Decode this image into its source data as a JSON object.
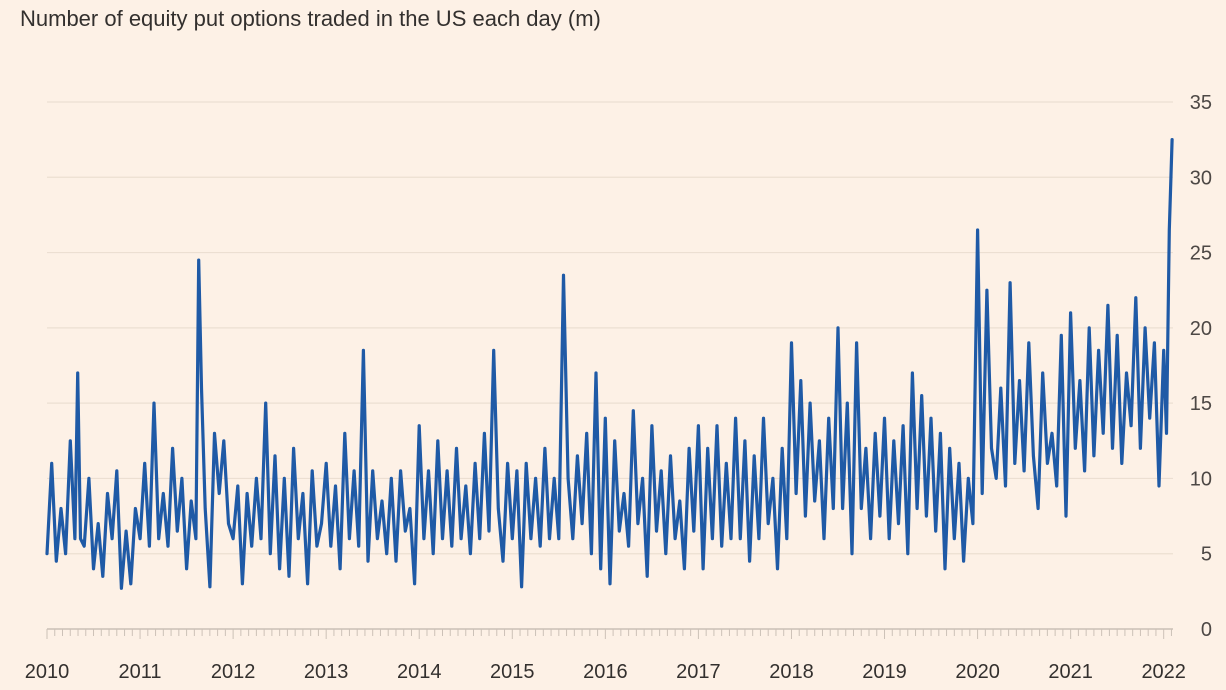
{
  "chart_data": {
    "type": "line",
    "title": "Number of equity put options traded in the US each day (m)",
    "xlabel": "",
    "ylabel": "",
    "xlim": [
      2010,
      2022.1
    ],
    "ylim": [
      0,
      35
    ],
    "y_ticks": [
      0,
      5,
      10,
      15,
      20,
      25,
      30,
      35
    ],
    "x_ticks": [
      "2010",
      "2011",
      "2012",
      "2013",
      "2014",
      "2015",
      "2016",
      "2017",
      "2018",
      "2019",
      "2020",
      "2021",
      "2022"
    ],
    "grid": true,
    "line_color": "#1f5aa6",
    "series": [
      {
        "x": [
          2010.0,
          2010.05,
          2010.1,
          2010.15,
          2010.2,
          2010.25,
          2010.3,
          2010.33,
          2010.36,
          2010.4,
          2010.45,
          2010.5,
          2010.55,
          2010.6,
          2010.65,
          2010.7,
          2010.75,
          2010.8,
          2010.85,
          2010.9,
          2010.95,
          2011.0,
          2011.05,
          2011.1,
          2011.15,
          2011.2,
          2011.25,
          2011.3,
          2011.35,
          2011.4,
          2011.45,
          2011.5,
          2011.55,
          2011.6,
          2011.63,
          2011.66,
          2011.7,
          2011.75,
          2011.8,
          2011.85,
          2011.9,
          2011.95,
          2012.0,
          2012.05,
          2012.1,
          2012.15,
          2012.2,
          2012.25,
          2012.3,
          2012.35,
          2012.4,
          2012.45,
          2012.5,
          2012.55,
          2012.6,
          2012.65,
          2012.7,
          2012.75,
          2012.8,
          2012.85,
          2012.9,
          2012.95,
          2013.0,
          2013.05,
          2013.1,
          2013.15,
          2013.2,
          2013.25,
          2013.3,
          2013.35,
          2013.4,
          2013.45,
          2013.5,
          2013.55,
          2013.6,
          2013.65,
          2013.7,
          2013.75,
          2013.8,
          2013.85,
          2013.9,
          2013.95,
          2014.0,
          2014.05,
          2014.1,
          2014.15,
          2014.2,
          2014.25,
          2014.3,
          2014.35,
          2014.4,
          2014.45,
          2014.5,
          2014.55,
          2014.6,
          2014.65,
          2014.7,
          2014.75,
          2014.8,
          2014.85,
          2014.9,
          2014.95,
          2015.0,
          2015.05,
          2015.1,
          2015.15,
          2015.2,
          2015.25,
          2015.3,
          2015.35,
          2015.4,
          2015.45,
          2015.5,
          2015.55,
          2015.6,
          2015.65,
          2015.7,
          2015.75,
          2015.8,
          2015.85,
          2015.9,
          2015.95,
          2016.0,
          2016.05,
          2016.1,
          2016.15,
          2016.2,
          2016.25,
          2016.3,
          2016.35,
          2016.4,
          2016.45,
          2016.5,
          2016.55,
          2016.6,
          2016.65,
          2016.7,
          2016.75,
          2016.8,
          2016.85,
          2016.9,
          2016.95,
          2017.0,
          2017.05,
          2017.1,
          2017.15,
          2017.2,
          2017.25,
          2017.3,
          2017.35,
          2017.4,
          2017.45,
          2017.5,
          2017.55,
          2017.6,
          2017.65,
          2017.7,
          2017.75,
          2017.8,
          2017.85,
          2017.9,
          2017.95,
          2018.0,
          2018.05,
          2018.1,
          2018.15,
          2018.2,
          2018.25,
          2018.3,
          2018.35,
          2018.4,
          2018.45,
          2018.5,
          2018.55,
          2018.6,
          2018.65,
          2018.7,
          2018.75,
          2018.8,
          2018.85,
          2018.9,
          2018.95,
          2019.0,
          2019.05,
          2019.1,
          2019.15,
          2019.2,
          2019.25,
          2019.3,
          2019.35,
          2019.4,
          2019.45,
          2019.5,
          2019.55,
          2019.6,
          2019.65,
          2019.7,
          2019.75,
          2019.8,
          2019.85,
          2019.9,
          2019.95,
          2020.0,
          2020.05,
          2020.1,
          2020.15,
          2020.2,
          2020.25,
          2020.3,
          2020.35,
          2020.4,
          2020.45,
          2020.5,
          2020.55,
          2020.6,
          2020.65,
          2020.7,
          2020.75,
          2020.8,
          2020.85,
          2020.9,
          2020.95,
          2021.0,
          2021.05,
          2021.1,
          2021.15,
          2021.2,
          2021.25,
          2021.3,
          2021.35,
          2021.4,
          2021.45,
          2021.5,
          2021.55,
          2021.6,
          2021.65,
          2021.7,
          2021.75,
          2021.8,
          2021.85,
          2021.9,
          2021.95,
          2022.0,
          2022.03,
          2022.06,
          2022.09
        ],
        "values": [
          5.0,
          11.0,
          4.5,
          8.0,
          5.0,
          12.5,
          6.0,
          17.0,
          6.0,
          5.5,
          10.0,
          4.0,
          7.0,
          3.5,
          9.0,
          6.0,
          10.5,
          2.7,
          6.5,
          3.0,
          8.0,
          6.0,
          11.0,
          5.5,
          15.0,
          6.0,
          9.0,
          5.5,
          12.0,
          6.5,
          10.0,
          4.0,
          8.5,
          6.0,
          24.5,
          16.0,
          8.0,
          2.8,
          13.0,
          9.0,
          12.5,
          7.0,
          6.0,
          9.5,
          3.0,
          9.0,
          5.5,
          10.0,
          6.0,
          15.0,
          5.0,
          11.5,
          4.0,
          10.0,
          3.5,
          12.0,
          6.0,
          9.0,
          3.0,
          10.5,
          5.5,
          7.0,
          11.0,
          5.5,
          9.5,
          4.0,
          13.0,
          6.0,
          10.5,
          5.5,
          18.5,
          4.5,
          10.5,
          6.0,
          8.5,
          5.0,
          10.0,
          4.5,
          10.5,
          6.5,
          8.0,
          3.0,
          13.5,
          6.0,
          10.5,
          5.0,
          12.5,
          6.0,
          10.5,
          5.5,
          12.0,
          6.0,
          9.5,
          5.0,
          11.0,
          6.0,
          13.0,
          6.5,
          18.5,
          8.0,
          4.5,
          11.0,
          6.0,
          10.5,
          2.8,
          11.0,
          6.0,
          10.0,
          5.5,
          12.0,
          6.0,
          10.0,
          6.0,
          23.5,
          10.0,
          6.0,
          11.5,
          7.0,
          13.0,
          5.0,
          17.0,
          4.0,
          14.0,
          3.0,
          12.5,
          6.5,
          9.0,
          5.5,
          14.5,
          7.0,
          10.0,
          3.5,
          13.5,
          6.5,
          10.5,
          5.0,
          11.5,
          6.0,
          8.5,
          4.0,
          12.0,
          6.5,
          13.5,
          4.0,
          12.0,
          6.0,
          13.5,
          5.5,
          11.0,
          6.0,
          14.0,
          6.0,
          12.5,
          4.5,
          11.5,
          6.0,
          14.0,
          7.0,
          10.0,
          4.0,
          12.0,
          6.0,
          19.0,
          9.0,
          16.5,
          7.5,
          15.0,
          8.5,
          12.5,
          6.0,
          14.0,
          8.0,
          20.0,
          8.0,
          15.0,
          5.0,
          19.0,
          8.0,
          12.0,
          6.0,
          13.0,
          7.5,
          14.0,
          6.0,
          12.5,
          7.0,
          13.5,
          5.0,
          17.0,
          8.0,
          15.5,
          7.5,
          14.0,
          6.5,
          13.0,
          4.0,
          12.0,
          6.0,
          11.0,
          4.5,
          10.0,
          7.0,
          26.5,
          9.0,
          22.5,
          12.0,
          10.0,
          16.0,
          9.5,
          23.0,
          11.0,
          16.5,
          10.5,
          19.0,
          11.5,
          8.0,
          17.0,
          11.0,
          13.0,
          9.5,
          19.5,
          7.5,
          21.0,
          12.0,
          16.5,
          10.5,
          20.0,
          11.5,
          18.5,
          13.0,
          21.5,
          12.0,
          19.5,
          11.0,
          17.0,
          13.5,
          22.0,
          12.0,
          20.0,
          14.0,
          19.0,
          9.5,
          18.5,
          13.0,
          26.5,
          32.5
        ]
      }
    ]
  }
}
